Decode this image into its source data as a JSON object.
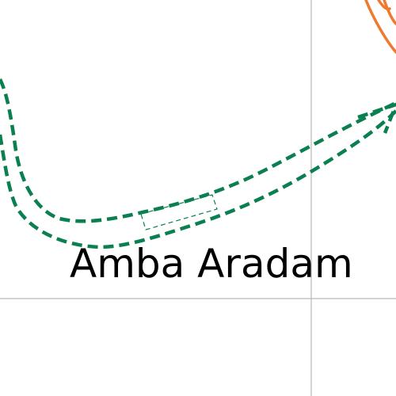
{
  "map": {
    "label": "Amba Aradam",
    "colors": {
      "background": "#ffffff",
      "route": "#0a8050",
      "river": "#ee7a30",
      "grid": "#b8b8b8",
      "label": "#000000"
    },
    "features": {
      "route_style": "dashed double line",
      "river_style": "solid",
      "grid": true
    }
  }
}
